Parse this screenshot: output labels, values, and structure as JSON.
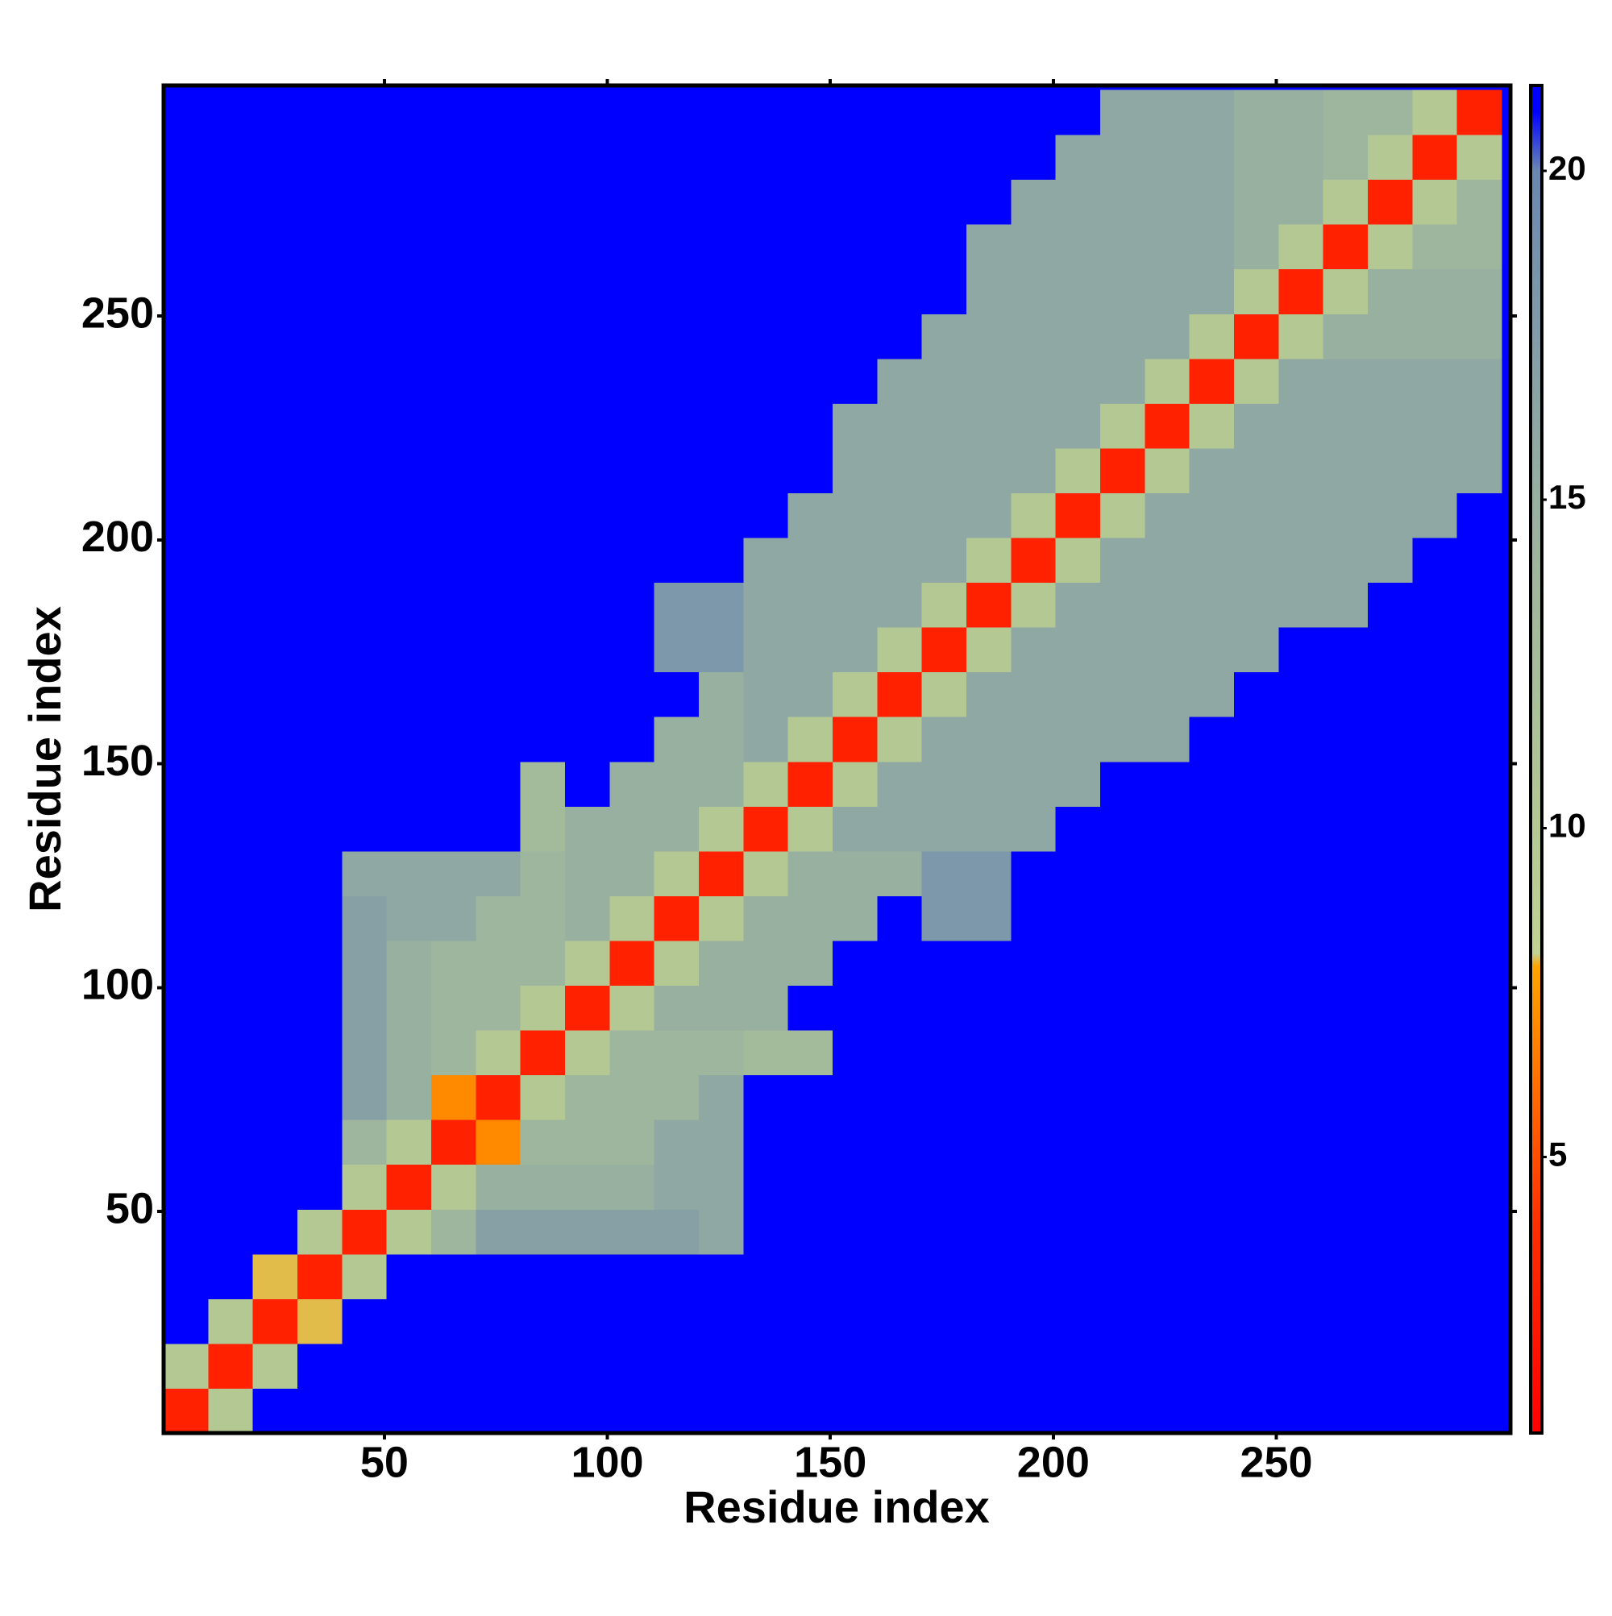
{
  "chart_data": {
    "type": "heatmap",
    "x_label": "Residue index",
    "y_label": "Residue index",
    "xbins": [
      0.5,
      10.5,
      20.5,
      30.5,
      40.5,
      50.5,
      60.5,
      70.5,
      80.5,
      90.5,
      100.5,
      110.5,
      120.5,
      130.5,
      140.5,
      150.5,
      160.5,
      170.5,
      180.5,
      190.5,
      200.5,
      210.5,
      220.5,
      230.5,
      240.5,
      250.5,
      260.5,
      270.5,
      280.5,
      290.5,
      300.5
    ],
    "ybins": [
      0.5,
      10.5,
      20.5,
      30.5,
      40.5,
      50.5,
      60.5,
      70.5,
      80.5,
      90.5,
      100.5,
      110.5,
      120.5,
      130.5,
      140.5,
      150.5,
      160.5,
      170.5,
      180.5,
      190.5,
      200.5,
      210.5,
      220.5,
      230.5,
      240.5,
      250.5,
      260.5,
      270.5,
      280.5,
      290.5,
      300.5
    ],
    "xlim": [
      0.5,
      302.5
    ],
    "ylim": [
      0.5,
      301.5
    ],
    "xticks": [
      50,
      100,
      150,
      200,
      250
    ],
    "yticks": [
      50,
      100,
      150,
      200,
      250
    ],
    "z": [
      [
        3,
        10,
        21,
        21,
        21,
        21,
        21,
        21,
        21,
        21,
        21,
        21,
        21,
        21,
        21,
        21,
        21,
        21,
        21,
        21,
        21,
        21,
        21,
        21,
        21,
        21,
        21,
        21,
        21,
        21
      ],
      [
        10,
        3,
        10,
        21,
        21,
        21,
        21,
        21,
        21,
        21,
        21,
        21,
        21,
        21,
        21,
        21,
        21,
        21,
        21,
        21,
        21,
        21,
        21,
        21,
        21,
        21,
        21,
        21,
        21,
        21
      ],
      [
        21,
        10,
        3,
        8,
        21,
        21,
        21,
        21,
        21,
        21,
        21,
        21,
        21,
        21,
        21,
        21,
        21,
        21,
        21,
        21,
        21,
        21,
        21,
        21,
        21,
        21,
        21,
        21,
        21,
        21
      ],
      [
        21,
        21,
        8,
        3,
        10,
        21,
        21,
        21,
        21,
        21,
        21,
        21,
        21,
        21,
        21,
        21,
        21,
        21,
        21,
        21,
        21,
        21,
        21,
        21,
        21,
        21,
        21,
        21,
        21,
        21
      ],
      [
        21,
        21,
        21,
        10,
        3,
        10,
        14,
        17,
        17,
        17,
        17,
        17,
        16,
        21,
        21,
        21,
        21,
        21,
        21,
        21,
        21,
        21,
        21,
        21,
        21,
        21,
        21,
        21,
        21,
        21
      ],
      [
        21,
        21,
        21,
        21,
        10,
        3,
        10,
        15,
        15,
        15,
        15,
        16,
        16,
        21,
        21,
        21,
        21,
        21,
        21,
        21,
        21,
        21,
        21,
        21,
        21,
        21,
        21,
        21,
        21,
        21
      ],
      [
        21,
        21,
        21,
        21,
        14,
        10,
        3,
        7,
        14,
        14,
        14,
        16,
        16,
        21,
        21,
        21,
        21,
        21,
        21,
        21,
        21,
        21,
        21,
        21,
        21,
        21,
        21,
        21,
        21,
        21
      ],
      [
        21,
        21,
        21,
        21,
        17,
        15,
        7,
        3,
        10,
        14,
        14,
        14,
        16,
        21,
        21,
        21,
        21,
        21,
        21,
        21,
        21,
        21,
        21,
        21,
        21,
        21,
        21,
        21,
        21,
        21
      ],
      [
        21,
        21,
        21,
        21,
        17,
        15,
        14,
        10,
        3,
        10,
        14,
        14,
        14,
        13,
        13,
        21,
        21,
        21,
        21,
        21,
        21,
        21,
        21,
        21,
        21,
        21,
        21,
        21,
        21,
        21
      ],
      [
        21,
        21,
        21,
        21,
        17,
        15,
        14,
        14,
        10,
        3,
        10,
        15,
        15,
        15,
        21,
        21,
        21,
        21,
        21,
        21,
        21,
        21,
        21,
        21,
        21,
        21,
        21,
        21,
        21,
        21
      ],
      [
        21,
        21,
        21,
        21,
        17,
        15,
        14,
        14,
        14,
        10,
        3,
        10,
        15,
        15,
        15,
        21,
        21,
        21,
        21,
        21,
        21,
        21,
        21,
        21,
        21,
        21,
        21,
        21,
        21,
        21
      ],
      [
        21,
        21,
        21,
        21,
        17,
        16,
        16,
        14,
        14,
        15,
        10,
        3,
        10,
        15,
        15,
        15,
        21,
        18,
        18,
        21,
        21,
        21,
        21,
        21,
        21,
        21,
        21,
        21,
        21,
        21
      ],
      [
        21,
        21,
        21,
        21,
        16,
        16,
        16,
        16,
        14,
        15,
        15,
        10,
        3,
        10,
        15,
        15,
        15,
        18,
        18,
        21,
        21,
        21,
        21,
        21,
        21,
        21,
        21,
        21,
        21,
        21
      ],
      [
        21,
        21,
        21,
        21,
        21,
        21,
        21,
        21,
        13,
        15,
        15,
        15,
        10,
        3,
        10,
        16,
        16,
        16,
        16,
        16,
        21,
        21,
        21,
        21,
        21,
        21,
        21,
        21,
        21,
        21
      ],
      [
        21,
        21,
        21,
        21,
        21,
        21,
        21,
        21,
        13,
        21,
        15,
        15,
        15,
        10,
        3,
        10,
        16,
        16,
        16,
        16,
        16,
        21,
        21,
        21,
        21,
        21,
        21,
        21,
        21,
        21
      ],
      [
        21,
        21,
        21,
        21,
        21,
        21,
        21,
        21,
        21,
        21,
        21,
        15,
        15,
        16,
        10,
        3,
        10,
        16,
        16,
        16,
        16,
        16,
        16,
        21,
        21,
        21,
        21,
        21,
        21,
        21
      ],
      [
        21,
        21,
        21,
        21,
        21,
        21,
        21,
        21,
        21,
        21,
        21,
        21,
        15,
        16,
        16,
        10,
        3,
        10,
        16,
        16,
        16,
        16,
        16,
        16,
        21,
        21,
        21,
        21,
        21,
        21
      ],
      [
        21,
        21,
        21,
        21,
        21,
        21,
        21,
        21,
        21,
        21,
        21,
        18,
        18,
        16,
        16,
        16,
        10,
        3,
        10,
        16,
        16,
        16,
        16,
        16,
        16,
        21,
        21,
        21,
        21,
        21
      ],
      [
        21,
        21,
        21,
        21,
        21,
        21,
        21,
        21,
        21,
        21,
        21,
        18,
        18,
        16,
        16,
        16,
        16,
        10,
        3,
        10,
        16,
        16,
        16,
        16,
        16,
        16,
        16,
        21,
        21,
        21
      ],
      [
        21,
        21,
        21,
        21,
        21,
        21,
        21,
        21,
        21,
        21,
        21,
        21,
        21,
        16,
        16,
        16,
        16,
        16,
        10,
        3,
        10,
        16,
        16,
        16,
        16,
        16,
        16,
        16,
        21,
        21
      ],
      [
        21,
        21,
        21,
        21,
        21,
        21,
        21,
        21,
        21,
        21,
        21,
        21,
        21,
        21,
        16,
        16,
        16,
        16,
        16,
        10,
        3,
        10,
        16,
        16,
        16,
        16,
        16,
        16,
        16,
        21
      ],
      [
        21,
        21,
        21,
        21,
        21,
        21,
        21,
        21,
        21,
        21,
        21,
        21,
        21,
        21,
        21,
        16,
        16,
        16,
        16,
        16,
        10,
        3,
        10,
        16,
        16,
        16,
        16,
        16,
        16,
        16
      ],
      [
        21,
        21,
        21,
        21,
        21,
        21,
        21,
        21,
        21,
        21,
        21,
        21,
        21,
        21,
        21,
        16,
        16,
        16,
        16,
        16,
        16,
        10,
        3,
        10,
        16,
        16,
        16,
        16,
        16,
        16
      ],
      [
        21,
        21,
        21,
        21,
        21,
        21,
        21,
        21,
        21,
        21,
        21,
        21,
        21,
        21,
        21,
        21,
        16,
        16,
        16,
        16,
        16,
        16,
        10,
        3,
        10,
        16,
        16,
        16,
        16,
        16
      ],
      [
        21,
        21,
        21,
        21,
        21,
        21,
        21,
        21,
        21,
        21,
        21,
        21,
        21,
        21,
        21,
        21,
        21,
        16,
        16,
        16,
        16,
        16,
        16,
        10,
        3,
        10,
        15,
        15,
        15,
        15
      ],
      [
        21,
        21,
        21,
        21,
        21,
        21,
        21,
        21,
        21,
        21,
        21,
        21,
        21,
        21,
        21,
        21,
        21,
        21,
        16,
        16,
        16,
        16,
        16,
        16,
        10,
        3,
        10,
        15,
        15,
        15
      ],
      [
        21,
        21,
        21,
        21,
        21,
        21,
        21,
        21,
        21,
        21,
        21,
        21,
        21,
        21,
        21,
        21,
        21,
        21,
        16,
        16,
        16,
        16,
        16,
        16,
        15,
        10,
        3,
        10,
        14,
        14
      ],
      [
        21,
        21,
        21,
        21,
        21,
        21,
        21,
        21,
        21,
        21,
        21,
        21,
        21,
        21,
        21,
        21,
        21,
        21,
        21,
        16,
        16,
        16,
        16,
        16,
        15,
        15,
        10,
        3,
        10,
        14
      ],
      [
        21,
        21,
        21,
        21,
        21,
        21,
        21,
        21,
        21,
        21,
        21,
        21,
        21,
        21,
        21,
        21,
        21,
        21,
        21,
        21,
        16,
        16,
        16,
        16,
        15,
        15,
        14,
        10,
        3,
        10
      ],
      [
        21,
        21,
        21,
        21,
        21,
        21,
        21,
        21,
        21,
        21,
        21,
        21,
        21,
        21,
        21,
        21,
        21,
        21,
        21,
        21,
        21,
        16,
        16,
        16,
        15,
        15,
        14,
        14,
        10,
        3
      ]
    ],
    "colorbar": {
      "lim": [
        0.8,
        21.3
      ],
      "ticks": [
        5,
        10,
        15,
        20
      ],
      "stops": [
        {
          "value": 0.8,
          "color": "#ff0000"
        },
        {
          "value": 4,
          "color": "#ff3000"
        },
        {
          "value": 7.9,
          "color": "#ffa500"
        },
        {
          "value": 8.1,
          "color": "#c2d294"
        },
        {
          "value": 10,
          "color": "#b4c894"
        },
        {
          "value": 15,
          "color": "#98b0a0"
        },
        {
          "value": 20,
          "color": "#6a88b0"
        },
        {
          "value": 20.9,
          "color": "#0000ff"
        },
        {
          "value": 21.3,
          "color": "#0000ff"
        }
      ]
    }
  }
}
